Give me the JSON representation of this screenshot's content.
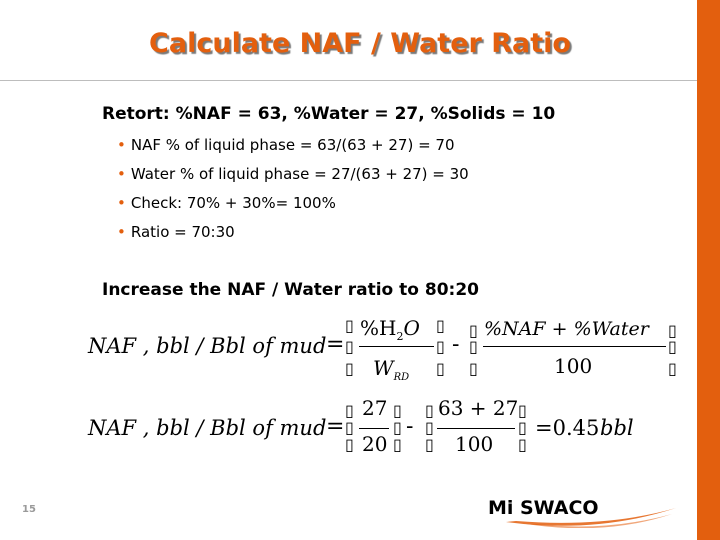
{
  "slide": {
    "title": "Calculate NAF / Water Ratio",
    "retort_line": "Retort: %NAF = 63, %Water = 27, %Solids = 10",
    "bullets": [
      "NAF % of liquid phase = 63/(63 + 27) = 70",
      "Water % of liquid phase = 27/(63 + 27) = 30",
      "Check: 70% + 30%= 100%",
      "Ratio = 70:30"
    ],
    "increase_line": "Increase the NAF / Water ratio to 80:20",
    "page_number": "15"
  },
  "equation1": {
    "lhs": "NAF , bbl / Bbl  of   mud",
    "equals": "=",
    "frac1_num": "%H",
    "frac1_num_sub": "2",
    "frac1_num_tail": "O",
    "frac1_den": "W",
    "frac1_den_sub": "RD",
    "minus": "-",
    "frac2_num": "%NAF + %Water",
    "frac2_den": "100"
  },
  "equation2": {
    "lhs": "NAF , bbl / Bbl  of   mud",
    "equals": "=",
    "frac1_num": "27",
    "frac1_den": "20",
    "minus": "-",
    "frac2_num": "63 + 27",
    "frac2_den": "100",
    "result": "=0.45",
    "result_unit": "bbl"
  },
  "logo": {
    "text_mi": "Mi",
    "text_swaco": "SWACO",
    "colors": {
      "text": "#000000",
      "swoosh": "#e35f0e"
    }
  },
  "colors": {
    "accent": "#e35f0e",
    "rule": "#bdbdbd"
  },
  "bracket_glyph": "▯"
}
